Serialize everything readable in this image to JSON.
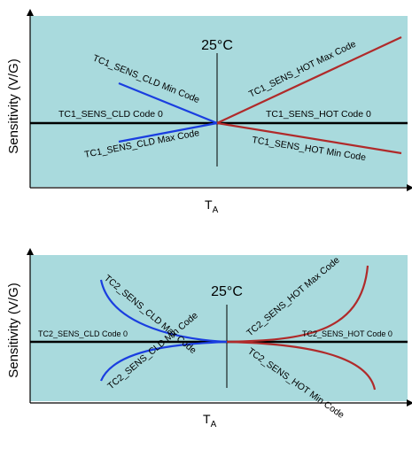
{
  "colors": {
    "panel_bg": "#a9dadd",
    "blue_curve": "#1a3ee0",
    "red_curve": "#b02a2a",
    "zero_line": "#000000"
  },
  "diagram1": {
    "ylabel": "Sensitivity (V/G)",
    "xlabel_main": "T",
    "xlabel_sub": "A",
    "temp_label": "25°C",
    "cld_min": "TC1_SENS_CLD Min Code",
    "cld_max": "TC1_SENS_CLD Max Code",
    "cld_zero": "TC1_SENS_CLD Code 0",
    "hot_max": "TC1_SENS_HOT Max Code",
    "hot_min": "TC1_SENS_HOT Min Code",
    "hot_zero": "TC1_SENS_HOT Code 0"
  },
  "diagram2": {
    "ylabel": "Sensitivity (V/G)",
    "xlabel_main": "T",
    "xlabel_sub": "A",
    "temp_label": "25°C",
    "cld_max": "TC2_SENS_CLD Max Code",
    "cld_min": "TC2_SENS_CLD Min Code",
    "cld_zero": "TC2_SENS_CLD Code 0",
    "hot_max": "TC2_SENS_HOT Max Code",
    "hot_min": "TC2_SENS_HOT Min Code",
    "hot_zero": "TC2_SENS_HOT Code 0"
  }
}
